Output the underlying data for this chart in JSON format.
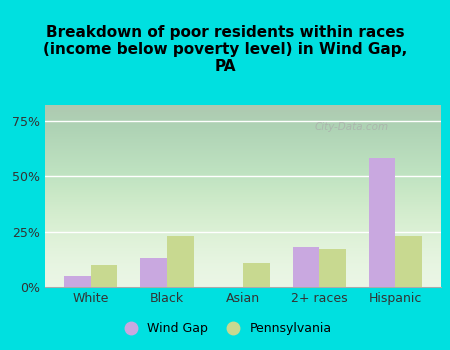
{
  "categories": [
    "White",
    "Black",
    "Asian",
    "2+ races",
    "Hispanic"
  ],
  "wind_gap": [
    5,
    13,
    0,
    18,
    58
  ],
  "pennsylvania": [
    10,
    23,
    11,
    17,
    23
  ],
  "wind_gap_color": "#c9a8e0",
  "pennsylvania_color": "#c8d990",
  "title": "Breakdown of poor residents within races\n(income below poverty level) in Wind Gap,\nPA",
  "title_fontsize": 11,
  "title_fontweight": "bold",
  "yticks": [
    0,
    25,
    50,
    75
  ],
  "ytick_labels": [
    "0%",
    "25%",
    "50%",
    "75%"
  ],
  "ylim": [
    0,
    82
  ],
  "background_color": "#00e0e0",
  "plot_bg_color": "#e8f5e2",
  "legend_wind_gap": "Wind Gap",
  "legend_pennsylvania": "Pennsylvania",
  "bar_width": 0.35,
  "watermark": "City-Data.com"
}
